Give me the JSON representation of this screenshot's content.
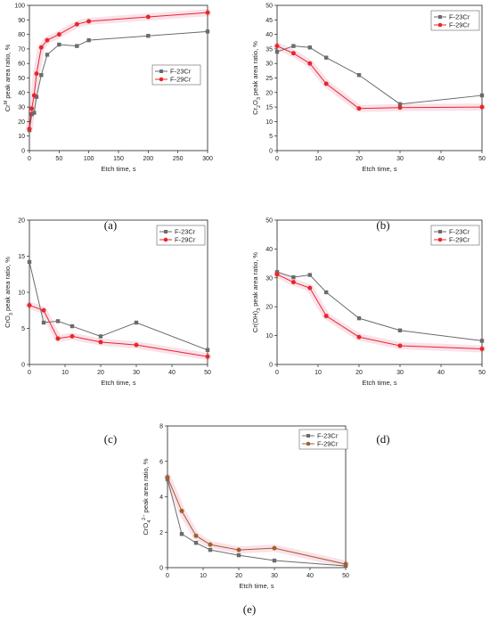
{
  "chart_data": [
    {
      "panel": "(a)",
      "type": "line",
      "xlabel": "Etch time, s",
      "ylabel": "Cr^M peak area ratio, %",
      "ylabel_parts": [
        "Cr",
        "M",
        " peak area ratio, %"
      ],
      "xlim": [
        0,
        300
      ],
      "ylim": [
        0,
        100
      ],
      "xticks": [
        0,
        50,
        100,
        150,
        200,
        250,
        300
      ],
      "yticks": [
        0,
        10,
        20,
        30,
        40,
        50,
        60,
        70,
        80,
        90,
        100
      ],
      "legend_position": "bottom-right",
      "series": [
        {
          "name": "F-23Cr",
          "color": "#6b6b6b",
          "marker": "square",
          "x": [
            0,
            4,
            8,
            12,
            20,
            30,
            50,
            80,
            100,
            200,
            300
          ],
          "y": [
            14,
            25,
            26,
            37,
            52,
            66,
            73,
            72,
            76,
            79,
            82
          ]
        },
        {
          "name": "F-29Cr",
          "color": "#e8262a",
          "marker": "circle",
          "x": [
            0,
            4,
            8,
            12,
            20,
            30,
            50,
            80,
            100,
            200,
            300
          ],
          "y": [
            15,
            29,
            38,
            53,
            71,
            76,
            80,
            87,
            89,
            92,
            95
          ]
        }
      ]
    },
    {
      "panel": "(b)",
      "type": "line",
      "xlabel": "Etch time, s",
      "ylabel": "Cr2O3 peak area ratio, %",
      "ylabel_parts": [
        "Cr",
        "2",
        "O",
        "3",
        " peak area ratio, %"
      ],
      "xlim": [
        0,
        50
      ],
      "ylim": [
        0,
        50
      ],
      "xticks": [
        0,
        10,
        20,
        30,
        40,
        50
      ],
      "yticks": [
        0,
        5,
        10,
        15,
        20,
        25,
        30,
        35,
        40,
        45,
        50
      ],
      "legend_position": "top-right",
      "series": [
        {
          "name": "F-23Cr",
          "color": "#6b6b6b",
          "marker": "square",
          "x": [
            0,
            4,
            8,
            12,
            20,
            30,
            50
          ],
          "y": [
            34,
            36,
            35.5,
            32,
            26,
            16,
            19
          ]
        },
        {
          "name": "F-29Cr",
          "color": "#e8262a",
          "marker": "circle",
          "x": [
            0,
            4,
            8,
            12,
            20,
            30,
            50
          ],
          "y": [
            36,
            33.5,
            30,
            23,
            14.5,
            14.8,
            15
          ]
        }
      ]
    },
    {
      "panel": "(c)",
      "type": "line",
      "xlabel": "Etch time, s",
      "ylabel": "CrO3 peak area ratio, %",
      "ylabel_parts": [
        "CrO",
        "3",
        " peak area ratio, %"
      ],
      "xlim": [
        0,
        50
      ],
      "ylim": [
        0,
        20
      ],
      "xticks": [
        0,
        10,
        20,
        30,
        40,
        50
      ],
      "yticks": [
        0,
        5,
        10,
        15,
        20
      ],
      "legend_position": "top-right",
      "series": [
        {
          "name": "F-23Cr",
          "color": "#6b6b6b",
          "marker": "square",
          "x": [
            0,
            4,
            8,
            12,
            20,
            30,
            50
          ],
          "y": [
            14.2,
            5.8,
            6,
            5.3,
            3.9,
            5.8,
            2
          ]
        },
        {
          "name": "F-29Cr",
          "color": "#e8262a",
          "marker": "circle",
          "x": [
            0,
            4,
            8,
            12,
            20,
            30,
            50
          ],
          "y": [
            8.2,
            7.5,
            3.6,
            3.9,
            3.1,
            2.7,
            1.1
          ]
        }
      ]
    },
    {
      "panel": "(d)",
      "type": "line",
      "xlabel": "Etch time, s",
      "ylabel": "Cr(OH)3 peak area ratio, %",
      "ylabel_parts": [
        "Cr(OH)",
        "3",
        " peak area ratio, %"
      ],
      "xlim": [
        0,
        50
      ],
      "ylim": [
        0,
        50
      ],
      "xticks": [
        0,
        10,
        20,
        30,
        40,
        50
      ],
      "yticks": [
        0,
        10,
        20,
        30,
        40,
        50
      ],
      "legend_position": "top-right",
      "series": [
        {
          "name": "F-23Cr",
          "color": "#6b6b6b",
          "marker": "square",
          "x": [
            0,
            4,
            8,
            12,
            20,
            30,
            50
          ],
          "y": [
            32,
            30.2,
            31,
            25,
            16,
            11.8,
            8.2
          ]
        },
        {
          "name": "F-29Cr",
          "color": "#e8262a",
          "marker": "circle",
          "x": [
            0,
            4,
            8,
            12,
            20,
            30,
            50
          ],
          "y": [
            31.2,
            28.5,
            26.5,
            16.8,
            9.5,
            6.5,
            5.4
          ]
        }
      ]
    },
    {
      "panel": "(e)",
      "type": "line",
      "xlabel": "Etch time, s",
      "ylabel": "CrO4 2- peak area ratio, %",
      "ylabel_parts": [
        "CrO",
        "4",
        "2−",
        " peak area ratio, %"
      ],
      "xlim": [
        0,
        50
      ],
      "ylim": [
        0,
        8
      ],
      "xticks": [
        0,
        10,
        20,
        30,
        40,
        50
      ],
      "yticks": [
        0,
        2,
        4,
        6,
        8
      ],
      "legend_position": "top-right",
      "series": [
        {
          "name": "F-23Cr",
          "color": "#6b6b6b",
          "marker": "square",
          "x": [
            0,
            4,
            8,
            12,
            20,
            30,
            50
          ],
          "y": [
            5,
            1.9,
            1.4,
            1.0,
            0.7,
            0.4,
            0.1
          ]
        },
        {
          "name": "F-29Cr",
          "color": "#a0602c",
          "marker": "circle",
          "x": [
            0,
            4,
            8,
            12,
            20,
            30,
            50
          ],
          "y": [
            5.1,
            3.2,
            1.8,
            1.3,
            1.0,
            1.1,
            0.2
          ]
        }
      ]
    }
  ]
}
